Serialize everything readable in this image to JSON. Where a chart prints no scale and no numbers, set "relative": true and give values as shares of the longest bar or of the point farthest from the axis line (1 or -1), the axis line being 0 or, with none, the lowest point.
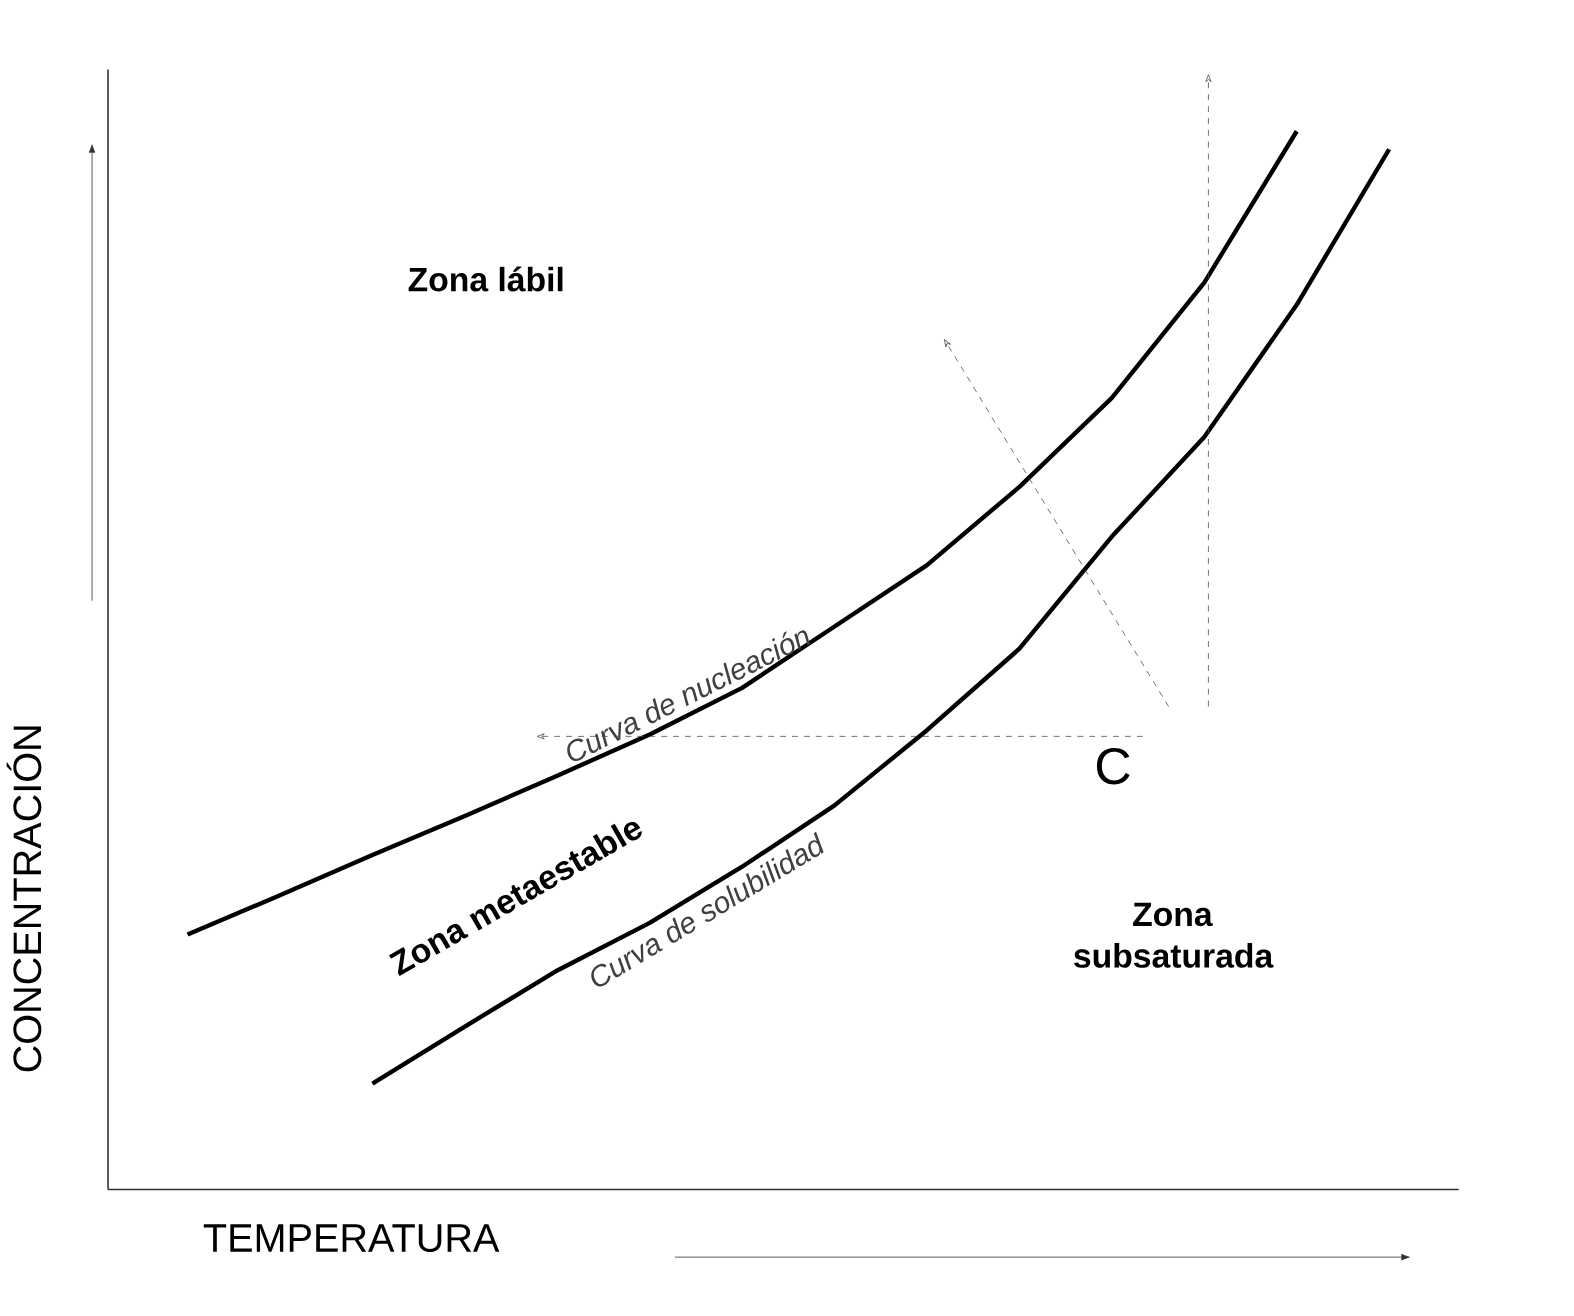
{
  "chart_data": {
    "type": "line",
    "relative": true,
    "xlabel": "TEMPERATURA",
    "ylabel": "CONCENTRACIÓN",
    "categories": [
      null,
      null,
      null,
      null,
      null,
      null,
      null,
      null,
      null,
      null,
      null,
      null,
      null,
      null
    ],
    "tick_labels": false,
    "legend": false,
    "marker": "none",
    "line_style": "solid",
    "series": [
      {
        "name": "Curva de nucleación",
        "color": "#000000",
        "values": [
          0.241,
          0.278,
          0.316,
          0.353,
          0.391,
          0.43,
          0.474,
          0.532,
          0.59,
          0.664,
          0.748,
          0.857,
          1,
          null
        ]
      },
      {
        "name": "Curva de solubilidad",
        "color": "#000000",
        "values": [
          null,
          null,
          0.1,
          0.154,
          0.207,
          0.252,
          0.305,
          0.363,
          0.434,
          0.511,
          0.617,
          0.711,
          0.836,
          0.983
        ]
      }
    ],
    "annotations": [
      "Zona lábil",
      "Zona metaestable",
      "Zona subsaturada",
      "C"
    ]
  }
}
